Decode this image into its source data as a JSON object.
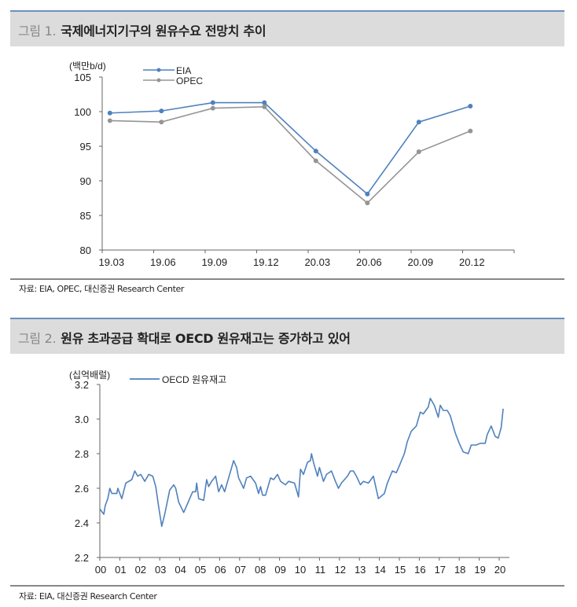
{
  "figure1": {
    "prefix": "그림 1.",
    "title": "국제에너지기구의 원유수요 전망치 추이",
    "source": "자료: EIA, OPEC, 대신증권 Research Center"
  },
  "figure2": {
    "prefix": "그림 2.",
    "title": "원유 초과공급 확대로 OECD 원유재고는 증가하고 있어",
    "source": "자료: EIA, 대신증권 Research Center"
  },
  "chart_data": [
    {
      "type": "line",
      "ylabel": "(백만b/d)",
      "categories": [
        "19.03",
        "19.06",
        "19.09",
        "19.12",
        "20.03",
        "20.06",
        "20.09",
        "20.12"
      ],
      "ylim": [
        80,
        105
      ],
      "yticks": [
        80,
        85,
        90,
        95,
        100,
        105
      ],
      "grid": false,
      "legend": "top-left",
      "series": [
        {
          "name": "EIA",
          "color": "#4f81bd",
          "values": [
            99.8,
            100.1,
            101.3,
            101.3,
            94.3,
            88.1,
            98.5,
            100.8
          ]
        },
        {
          "name": "OPEC",
          "color": "#959595",
          "values": [
            98.7,
            98.5,
            100.5,
            100.7,
            92.9,
            86.8,
            94.2,
            97.2
          ]
        }
      ]
    },
    {
      "type": "line",
      "ylabel": "(십억배럴)",
      "xticks": [
        "00",
        "01",
        "02",
        "03",
        "04",
        "05",
        "06",
        "07",
        "08",
        "09",
        "10",
        "11",
        "12",
        "13",
        "14",
        "15",
        "16",
        "17",
        "18",
        "19",
        "20"
      ],
      "ylim": [
        2.2,
        3.2
      ],
      "yticks": [
        "2.2",
        "2.4",
        "2.6",
        "2.8",
        "3.0",
        "3.2"
      ],
      "grid": false,
      "legend": "top-left",
      "series": [
        {
          "name": "OECD 원유재고",
          "color": "#4f81bd",
          "x": [
            2000.0,
            2000.2,
            2000.27,
            2000.4,
            2000.5,
            2000.6,
            2000.85,
            2000.9,
            2001.1,
            2001.3,
            2001.6,
            2001.75,
            2001.9,
            2002.05,
            2002.25,
            2002.45,
            2002.65,
            2002.8,
            2002.95,
            2003.1,
            2003.25,
            2003.5,
            2003.7,
            2003.8,
            2003.95,
            2004.2,
            2004.5,
            2004.65,
            2004.8,
            2004.85,
            2004.95,
            2005.2,
            2005.35,
            2005.45,
            2005.6,
            2005.8,
            2005.95,
            2006.1,
            2006.25,
            2006.45,
            2006.7,
            2006.85,
            2006.95,
            2007.2,
            2007.35,
            2007.55,
            2007.8,
            2007.95,
            2008.05,
            2008.15,
            2008.3,
            2008.55,
            2008.7,
            2008.9,
            2009.05,
            2009.3,
            2009.45,
            2009.75,
            2009.95,
            2010.05,
            2010.2,
            2010.4,
            2010.55,
            2010.6,
            2010.7,
            2010.9,
            2011.0,
            2011.2,
            2011.35,
            2011.6,
            2011.8,
            2011.95,
            2012.1,
            2012.4,
            2012.55,
            2012.7,
            2012.85,
            2013.05,
            2013.2,
            2013.45,
            2013.7,
            2013.95,
            2014.25,
            2014.4,
            2014.65,
            2014.85,
            2015.0,
            2015.25,
            2015.4,
            2015.6,
            2015.85,
            2016.05,
            2016.2,
            2016.45,
            2016.55,
            2016.75,
            2016.95,
            2017.05,
            2017.2,
            2017.4,
            2017.55,
            2017.8,
            2018.0,
            2018.2,
            2018.45,
            2018.6,
            2018.85,
            2019.05,
            2019.3,
            2019.4,
            2019.6,
            2019.8,
            2019.95,
            2020.1,
            2020.2
          ],
          "values": [
            2.48,
            2.45,
            2.5,
            2.54,
            2.6,
            2.57,
            2.57,
            2.6,
            2.54,
            2.63,
            2.65,
            2.7,
            2.67,
            2.68,
            2.64,
            2.68,
            2.67,
            2.61,
            2.49,
            2.38,
            2.45,
            2.59,
            2.62,
            2.6,
            2.52,
            2.46,
            2.54,
            2.58,
            2.58,
            2.63,
            2.54,
            2.53,
            2.65,
            2.61,
            2.64,
            2.67,
            2.58,
            2.62,
            2.58,
            2.66,
            2.76,
            2.72,
            2.66,
            2.6,
            2.66,
            2.67,
            2.63,
            2.57,
            2.61,
            2.56,
            2.56,
            2.66,
            2.65,
            2.68,
            2.64,
            2.62,
            2.64,
            2.63,
            2.55,
            2.71,
            2.68,
            2.75,
            2.76,
            2.8,
            2.75,
            2.67,
            2.72,
            2.64,
            2.68,
            2.7,
            2.64,
            2.6,
            2.63,
            2.67,
            2.7,
            2.7,
            2.67,
            2.62,
            2.64,
            2.63,
            2.67,
            2.54,
            2.57,
            2.63,
            2.7,
            2.69,
            2.73,
            2.8,
            2.87,
            2.93,
            2.96,
            3.04,
            3.03,
            3.07,
            3.12,
            3.08,
            3.01,
            3.08,
            3.05,
            3.05,
            3.02,
            2.92,
            2.86,
            2.81,
            2.8,
            2.85,
            2.85,
            2.86,
            2.86,
            2.91,
            2.96,
            2.9,
            2.89,
            2.95,
            3.06
          ]
        }
      ]
    }
  ]
}
